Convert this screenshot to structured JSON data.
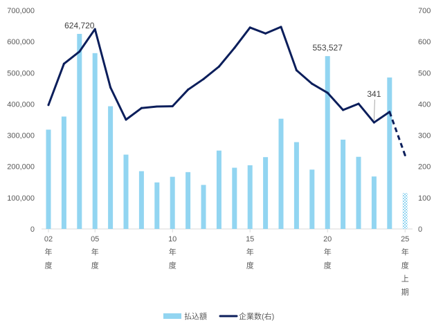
{
  "chart_data": {
    "type": "bar",
    "title": "",
    "xlabel": "",
    "ylabel": "",
    "x": [
      2002,
      2003,
      2004,
      2005,
      2006,
      2007,
      2008,
      2009,
      2010,
      2011,
      2012,
      2013,
      2014,
      2015,
      2016,
      2017,
      2018,
      2019,
      2020,
      2021,
      2022,
      2023,
      2024,
      2025
    ],
    "x_tick_labels": [
      {
        "at": 2002,
        "lines": [
          "02",
          "年",
          "度"
        ]
      },
      {
        "at": 2005,
        "lines": [
          "05",
          "年",
          "度"
        ]
      },
      {
        "at": 2010,
        "lines": [
          "10",
          "年",
          "度"
        ]
      },
      {
        "at": 2015,
        "lines": [
          "15",
          "年",
          "度"
        ]
      },
      {
        "at": 2020,
        "lines": [
          "20",
          "年",
          "度"
        ]
      },
      {
        "at": 2025,
        "lines": [
          "25",
          "年",
          "度",
          "上",
          "期"
        ]
      }
    ],
    "series": [
      {
        "name": "払込額",
        "type": "bar",
        "axis": "left",
        "values": [
          318000,
          360000,
          624720,
          563000,
          393000,
          238000,
          185000,
          149000,
          167000,
          182000,
          141000,
          251000,
          196000,
          204000,
          230000,
          353000,
          278000,
          190000,
          553527,
          286000,
          231000,
          168000,
          485000,
          115000
        ]
      },
      {
        "name": "企業数(右)",
        "type": "line",
        "axis": "right",
        "values": [
          397,
          529,
          568,
          640,
          453,
          350,
          387,
          392,
          393,
          446,
          480,
          520,
          580,
          645,
          626,
          647,
          508,
          465,
          436,
          381,
          401,
          341,
          375,
          236
        ]
      }
    ],
    "forecast_x": 2025,
    "ylim_left": [
      0,
      700000
    ],
    "y_left_ticks": [
      0,
      100000,
      200000,
      300000,
      400000,
      500000,
      600000,
      700000
    ],
    "y_left_tick_labels": [
      "0",
      "100,000",
      "200,000",
      "300,000",
      "400,000",
      "500,000",
      "600,000",
      "700,000"
    ],
    "ylim_right": [
      0,
      700
    ],
    "y_right_ticks": [
      0,
      100,
      200,
      300,
      400,
      500,
      600,
      700
    ],
    "y_right_tick_labels": [
      "0",
      "100",
      "200",
      "300",
      "400",
      "500",
      "600",
      "700"
    ],
    "annotations": [
      {
        "text": "624,720",
        "series": 0,
        "x": 2004
      },
      {
        "text": "553,527",
        "series": 0,
        "x": 2020
      },
      {
        "text": "341",
        "series": 1,
        "x": 2023
      }
    ],
    "legend": {
      "position": "bottom"
    },
    "grid": false,
    "colors": {
      "bar": "#92d5f1",
      "line": "#0b1e5b",
      "axis_text": "#595959",
      "axis_line": "#d9d9d9",
      "leader": "#a6a6a6"
    }
  }
}
